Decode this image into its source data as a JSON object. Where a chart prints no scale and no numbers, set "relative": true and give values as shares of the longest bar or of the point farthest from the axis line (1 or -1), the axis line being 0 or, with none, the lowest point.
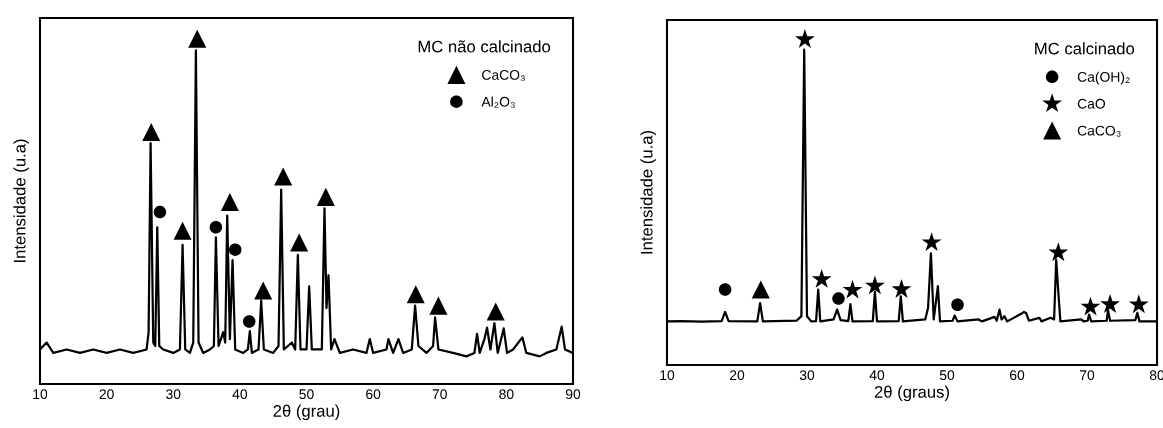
{
  "chart_data": [
    {
      "type": "line",
      "relative": true,
      "xlabel": "2θ (grau)",
      "ylabel": "Intensidade (u.a)",
      "legend_title": "MC não calcinado",
      "legend": "top right",
      "grid": false,
      "tick_labels": "x",
      "xlim": [
        10,
        90
      ],
      "xticks": [
        10,
        20,
        30,
        40,
        50,
        60,
        70,
        80,
        90
      ],
      "series": [
        {
          "color": "#000000",
          "marker": "none",
          "line_style": "solid",
          "x": [
            10,
            11,
            12,
            14,
            16,
            18,
            20,
            22,
            24,
            26,
            26.3,
            26.6,
            27.0,
            27.3,
            27.6,
            27.9,
            28.5,
            30,
            31.0,
            31.4,
            31.8,
            32.5,
            33.0,
            33.4,
            33.8,
            34.5,
            35.5,
            36.1,
            36.4,
            36.8,
            37.5,
            37.8,
            38.1,
            38.5,
            38.9,
            39.3,
            40.5,
            41.2,
            41.5,
            41.8,
            42.8,
            43.2,
            43.6,
            45,
            45.8,
            46.2,
            46.6,
            47.8,
            48.3,
            48.7,
            49.1,
            50.0,
            50.4,
            50.8,
            52.3,
            52.7,
            53.0,
            53.3,
            53.7,
            54.2,
            55,
            57,
            59,
            59.5,
            60,
            62,
            62.3,
            63,
            63.8,
            64.5,
            65.8,
            66.3,
            66.8,
            68,
            69.0,
            69.3,
            69.8,
            72,
            74,
            75.2,
            75.6,
            76,
            76.7,
            77.1,
            77.6,
            78.2,
            78.7,
            79.6,
            80.1,
            81,
            82.4,
            83,
            85,
            86,
            87.5,
            88.3,
            88.8,
            90
          ],
          "values": [
            0.1,
            0.12,
            0.09,
            0.1,
            0.09,
            0.1,
            0.09,
            0.1,
            0.09,
            0.1,
            0.15,
            0.698,
            0.12,
            0.11,
            0.454,
            0.11,
            0.1,
            0.09,
            0.1,
            0.403,
            0.1,
            0.09,
            0.12,
            0.966,
            0.12,
            0.09,
            0.1,
            0.11,
            0.425,
            0.11,
            0.15,
            0.12,
            0.488,
            0.13,
            0.359,
            0.1,
            0.09,
            0.1,
            0.153,
            0.09,
            0.1,
            0.242,
            0.1,
            0.09,
            0.11,
            0.563,
            0.1,
            0.12,
            0.1,
            0.374,
            0.1,
            0.1,
            0.283,
            0.1,
            0.1,
            0.509,
            0.22,
            0.315,
            0.1,
            0.13,
            0.09,
            0.1,
            0.09,
            0.13,
            0.09,
            0.1,
            0.13,
            0.09,
            0.13,
            0.09,
            0.1,
            0.227,
            0.11,
            0.09,
            0.11,
            0.193,
            0.1,
            0.09,
            0.08,
            0.09,
            0.145,
            0.09,
            0.13,
            0.163,
            0.1,
            0.176,
            0.09,
            0.161,
            0.09,
            0.1,
            0.135,
            0.09,
            0.08,
            0.09,
            0.1,
            0.166,
            0.1,
            0.09
          ]
        },
        {
          "type": "scatter",
          "name": "CaCO₃",
          "color": "#000000",
          "marker": "triangle",
          "x": [
            26.7,
            31.4,
            33.6,
            38.5,
            43.5,
            46.5,
            48.9,
            52.9,
            66.4,
            69.8,
            78.4
          ],
          "values": [
            0.73,
            0.444,
            1.0,
            0.527,
            0.271,
            0.601,
            0.41,
            0.542,
            0.26,
            0.227,
            0.21
          ]
        },
        {
          "type": "scatter",
          "name": "Al₂O₃",
          "color": "#000000",
          "marker": "circle",
          "x": [
            28.0,
            36.4,
            39.3,
            41.4
          ],
          "values": [
            0.498,
            0.454,
            0.389,
            0.181
          ]
        }
      ]
    },
    {
      "type": "line",
      "relative": true,
      "xlabel": "2θ (graus)",
      "ylabel": "Intensidade (u.a)",
      "legend_title": "MC calcinado",
      "legend": "top right",
      "grid": false,
      "tick_labels": "x",
      "xlim": [
        10,
        80
      ],
      "xticks": [
        10,
        20,
        30,
        40,
        50,
        60,
        70,
        80
      ],
      "series": [
        {
          "color": "#000000",
          "marker": "none",
          "line_style": "solid",
          "x": [
            10,
            12,
            15,
            17.8,
            18.3,
            18.8,
            22.9,
            23.3,
            23.7,
            28.5,
            29.2,
            29.6,
            30.0,
            30.6,
            31.3,
            31.6,
            31.9,
            33.8,
            34.3,
            34.8,
            35.9,
            36.2,
            36.5,
            39.4,
            39.7,
            40.0,
            43.1,
            43.4,
            43.7,
            46.9,
            47.3,
            47.7,
            48.1,
            48.7,
            49.0,
            50.8,
            51.1,
            51.5,
            54.5,
            55,
            56.8,
            57.1,
            57.5,
            57.8,
            58.2,
            58.6,
            60.8,
            61.0,
            61.3,
            61.7,
            63.2,
            63.5,
            64.8,
            65.3,
            65.6,
            65.9,
            66.2,
            69.2,
            69.5,
            70.1,
            70.3,
            70.6,
            72.8,
            73.0,
            73.3,
            76.9,
            77.2,
            77.5,
            80
          ],
          "values": [
            0.134,
            0.135,
            0.133,
            0.135,
            0.163,
            0.135,
            0.134,
            0.19,
            0.134,
            0.136,
            0.15,
            0.969,
            0.15,
            0.134,
            0.135,
            0.232,
            0.134,
            0.14,
            0.17,
            0.138,
            0.135,
            0.187,
            0.134,
            0.135,
            0.225,
            0.134,
            0.135,
            0.211,
            0.134,
            0.14,
            0.177,
            0.343,
            0.14,
            0.242,
            0.134,
            0.136,
            0.152,
            0.134,
            0.14,
            0.134,
            0.148,
            0.136,
            0.17,
            0.14,
            0.15,
            0.134,
            0.16,
            0.163,
            0.16,
            0.136,
            0.145,
            0.134,
            0.145,
            0.14,
            0.324,
            0.225,
            0.134,
            0.14,
            0.134,
            0.136,
            0.155,
            0.134,
            0.136,
            0.168,
            0.136,
            0.138,
            0.16,
            0.134,
            0.134
          ]
        },
        {
          "type": "scatter",
          "name": "Ca(OH)₂",
          "color": "#000000",
          "marker": "circle",
          "x": [
            18.3,
            34.5,
            51.5
          ],
          "values": [
            0.232,
            0.204,
            0.185
          ]
        },
        {
          "type": "scatter",
          "name": "CaO",
          "color": "#000000",
          "marker": "star",
          "x": [
            29.7,
            32.1,
            36.5,
            39.7,
            43.5,
            47.8,
            65.9,
            70.5,
            73.3,
            77.4
          ],
          "values": [
            1.0,
            0.263,
            0.23,
            0.243,
            0.232,
            0.376,
            0.345,
            0.178,
            0.186,
            0.185
          ]
        },
        {
          "type": "scatter",
          "name": "CaCO₃",
          "color": "#000000",
          "marker": "triangle",
          "x": [
            23.4
          ],
          "values": [
            0.232
          ]
        }
      ]
    }
  ]
}
